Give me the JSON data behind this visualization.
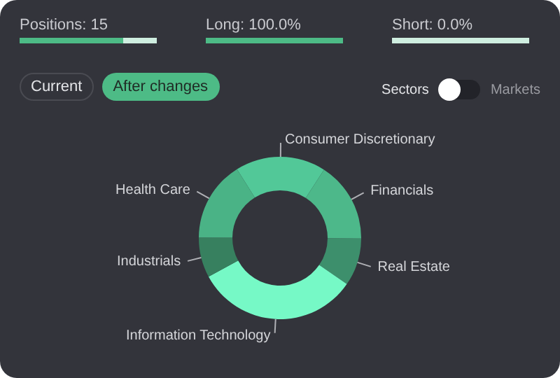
{
  "chart_data": {
    "type": "donut",
    "categories": [
      "Consumer Discretionary",
      "Financials",
      "Real Estate",
      "Information Technology",
      "Industrials",
      "Health Care"
    ],
    "values": [
      18,
      16,
      9.5,
      32.5,
      8,
      16
    ],
    "colors": [
      "#52c898",
      "#4db88a",
      "#3d8f6c",
      "#76f9c6",
      "#37805f",
      "#4ab386"
    ],
    "annotations": [
      "Positions: 15",
      "Long: 100.0%",
      "Short: 0.0%",
      "Current",
      "After changes",
      "Sectors",
      "Markets"
    ],
    "legend": false
  }
}
